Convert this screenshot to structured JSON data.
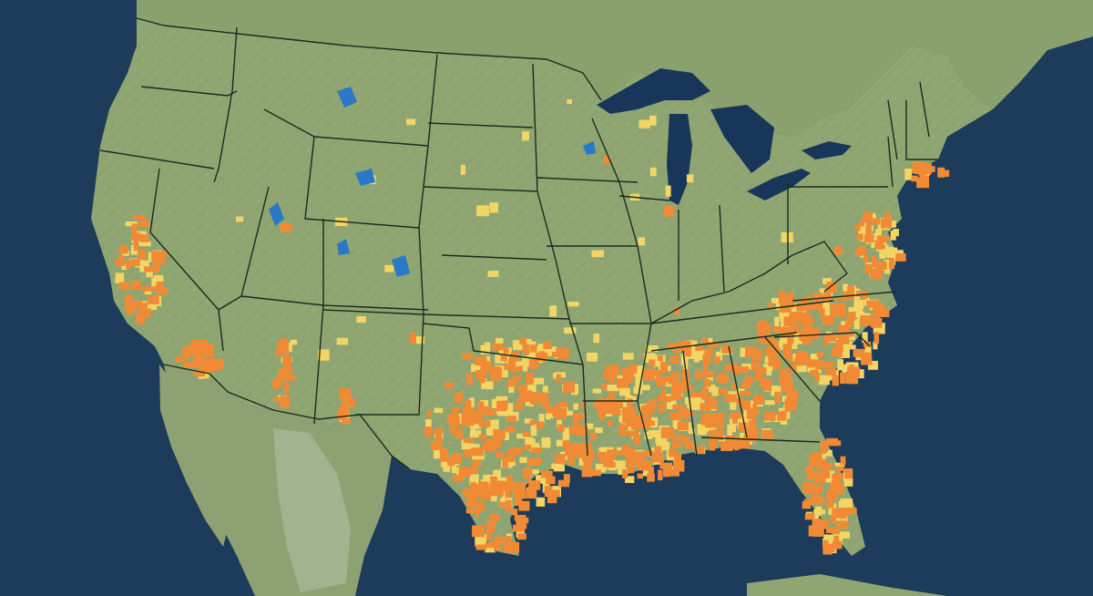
{
  "map": {
    "type": "choropleth",
    "region": "contiguous-united-states",
    "labels_shown": false,
    "legend_shown": false,
    "colors": {
      "ocean": "#1d3b5a",
      "land": "#8fa673",
      "land_dark": "#7d9563",
      "land_mountain": "#a9b896",
      "lake": "#17365a",
      "river_water": "#2a78c8",
      "state_border": "#1c2a1e",
      "category_low": "#f3d564",
      "category_high": "#f08a35"
    },
    "categories": [
      {
        "color": "#f3d564"
      },
      {
        "color": "#f08a35"
      }
    ],
    "highlight_regions": [
      {
        "region": "southeast-gulf-coast",
        "level": "high"
      },
      {
        "region": "texas",
        "level": "high"
      },
      {
        "region": "florida",
        "level": "high"
      },
      {
        "region": "carolinas",
        "level": "high"
      },
      {
        "region": "california-central-valley",
        "level": "high"
      },
      {
        "region": "southern-arizona",
        "level": "high"
      },
      {
        "region": "mid-atlantic",
        "level": "low"
      },
      {
        "region": "scattered-interior",
        "level": "low"
      }
    ]
  }
}
